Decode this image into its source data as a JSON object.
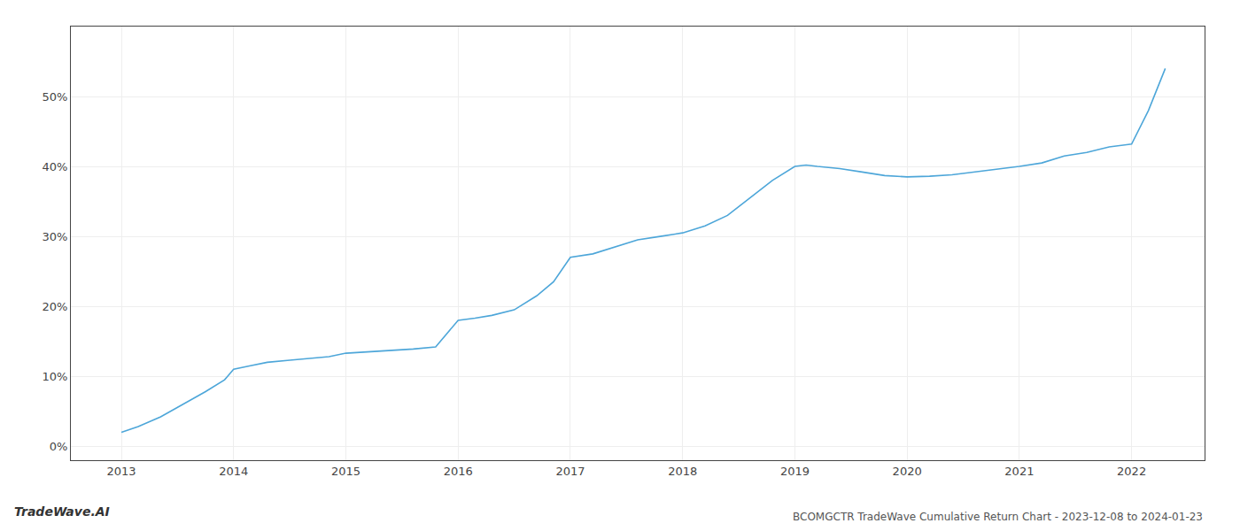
{
  "chart_data": {
    "type": "line",
    "title": "BCOMGCTR TradeWave Cumulative Return Chart - 2023-12-08 to 2024-01-23",
    "annotations": [
      "TradeWave.AI"
    ],
    "x": [
      2013.0,
      2013.15,
      2013.35,
      2013.55,
      2013.75,
      2013.92,
      2014.0,
      2014.15,
      2014.3,
      2014.5,
      2014.7,
      2014.85,
      2015.0,
      2015.2,
      2015.4,
      2015.6,
      2015.8,
      2016.0,
      2016.15,
      2016.3,
      2016.5,
      2016.7,
      2016.85,
      2017.0,
      2017.2,
      2017.4,
      2017.6,
      2017.8,
      2018.0,
      2018.2,
      2018.4,
      2018.6,
      2018.8,
      2019.0,
      2019.1,
      2019.2,
      2019.4,
      2019.6,
      2019.8,
      2020.0,
      2020.2,
      2020.4,
      2020.6,
      2020.8,
      2021.0,
      2021.2,
      2021.4,
      2021.6,
      2021.8,
      2022.0,
      2022.15,
      2022.3
    ],
    "values": [
      2.0,
      2.8,
      4.2,
      6.0,
      7.8,
      9.5,
      11.0,
      11.5,
      12.0,
      12.3,
      12.6,
      12.8,
      13.3,
      13.5,
      13.7,
      13.9,
      14.2,
      18.0,
      18.3,
      18.7,
      19.5,
      21.5,
      23.5,
      27.0,
      27.5,
      28.5,
      29.5,
      30.0,
      30.5,
      31.5,
      33.0,
      35.5,
      38.0,
      40.0,
      40.2,
      40.0,
      39.7,
      39.2,
      38.7,
      38.5,
      38.6,
      38.8,
      39.2,
      39.6,
      40.0,
      40.5,
      41.5,
      42.0,
      42.8,
      43.2,
      48.0,
      54.0
    ],
    "color": "#4da6d9",
    "xlim": [
      2012.55,
      2022.65
    ],
    "ylim": [
      -2,
      60
    ],
    "xticks": [
      2013,
      2014,
      2015,
      2016,
      2017,
      2018,
      2019,
      2020,
      2021,
      2022
    ],
    "yticks": [
      {
        "value": 0,
        "label": "0%"
      },
      {
        "value": 10,
        "label": "10%"
      },
      {
        "value": 20,
        "label": "20%"
      },
      {
        "value": 30,
        "label": "30%"
      },
      {
        "value": 40,
        "label": "40%"
      },
      {
        "value": 50,
        "label": "50%"
      }
    ],
    "grid": true
  }
}
